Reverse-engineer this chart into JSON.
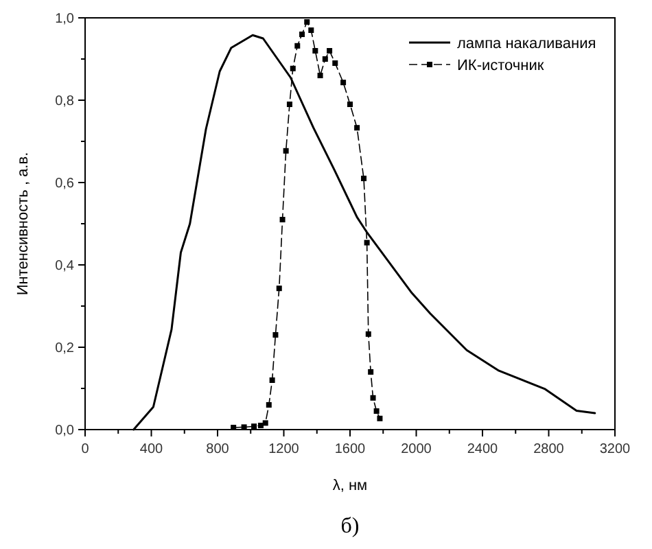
{
  "chart_data": {
    "type": "line",
    "xlabel": "λ, нм",
    "ylabel": "Интенсивность , а.в.",
    "annotations": [
      "б)"
    ],
    "xlim": [
      0,
      3200
    ],
    "ylim": [
      0,
      1
    ],
    "xticks": [
      0,
      {
        "value": 200,
        "label": null
      },
      400,
      {
        "value": 600,
        "label": null
      },
      800,
      {
        "value": 1000,
        "label": null
      },
      1200,
      {
        "value": 1400,
        "label": null
      },
      1600,
      {
        "value": 1800,
        "label": null
      },
      2000,
      {
        "value": 2200,
        "label": null
      },
      2400,
      {
        "value": 2600,
        "label": null
      },
      2800,
      {
        "value": 3000,
        "label": null
      },
      3200
    ],
    "yticks": [
      {
        "value": 0,
        "label": "0,0"
      },
      {
        "value": 0.1,
        "label": null
      },
      {
        "value": 0.2,
        "label": "0,2"
      },
      {
        "value": 0.3,
        "label": null
      },
      {
        "value": 0.4,
        "label": "0,4"
      },
      {
        "value": 0.5,
        "label": null
      },
      {
        "value": 0.6,
        "label": "0,6"
      },
      {
        "value": 0.7,
        "label": null
      },
      {
        "value": 0.8,
        "label": "0,8"
      },
      {
        "value": 0.9,
        "label": null
      },
      {
        "value": 1,
        "label": "1,0"
      }
    ],
    "grid": false,
    "legend": "top right",
    "series": [
      {
        "name": "лампа накаливания",
        "color": "#000000",
        "marker": "none",
        "line_style": "solid",
        "x": [
          293,
          412,
          522,
          578,
          633,
          730,
          813,
          882,
          1012,
          1075,
          1241,
          1379,
          1504,
          1642,
          1697,
          1973,
          2084,
          2305,
          2499,
          2775,
          2968,
          3079
        ],
        "values": [
          0,
          0.055,
          0.243,
          0.43,
          0.5,
          0.73,
          0.87,
          0.927,
          0.958,
          0.95,
          0.855,
          0.733,
          0.632,
          0.516,
          0.482,
          0.332,
          0.282,
          0.193,
          0.143,
          0.099,
          0.046,
          0.04
        ]
      },
      {
        "name": "ИК-источник",
        "color": "#000000",
        "marker": "square",
        "line_style": "dashed",
        "x": [
          896,
          960,
          1020,
          1061,
          1089,
          1110,
          1130,
          1150,
          1172,
          1192,
          1213,
          1235,
          1255,
          1282,
          1310,
          1340,
          1365,
          1390,
          1420,
          1450,
          1476,
          1510,
          1559,
          1600,
          1642,
          1683,
          1702,
          1711,
          1725,
          1739,
          1760,
          1780
        ],
        "values": [
          0.005,
          0.006,
          0.008,
          0.01,
          0.016,
          0.06,
          0.12,
          0.23,
          0.343,
          0.51,
          0.677,
          0.79,
          0.877,
          0.932,
          0.96,
          0.99,
          0.97,
          0.92,
          0.86,
          0.9,
          0.92,
          0.89,
          0.843,
          0.79,
          0.733,
          0.61,
          0.454,
          0.232,
          0.14,
          0.077,
          0.045,
          0.027
        ]
      }
    ]
  }
}
